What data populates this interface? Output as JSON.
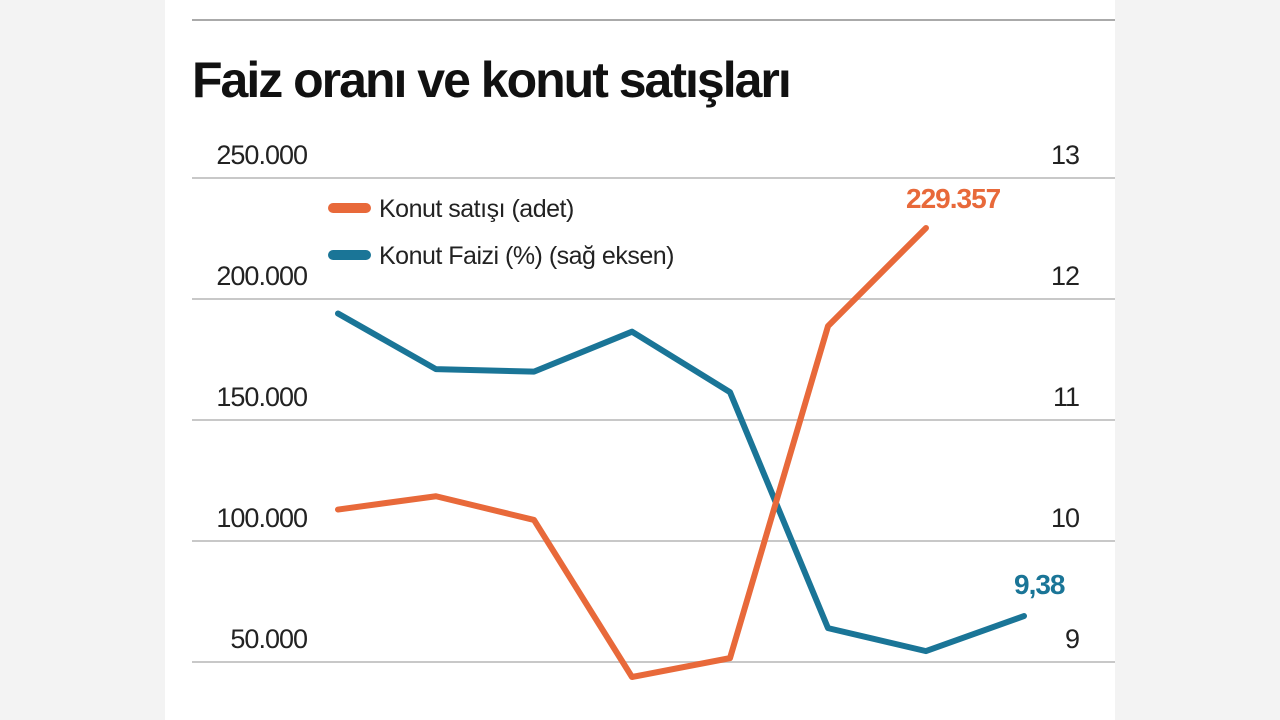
{
  "chart_data": {
    "type": "line",
    "title": "Faiz oranı ve konut satışları",
    "x": [
      1,
      2,
      3,
      4,
      5,
      6,
      7,
      8
    ],
    "y_left": {
      "ticks": [
        "250.000",
        "200.000",
        "150.000",
        "100.000",
        "50.000"
      ],
      "tick_values": [
        250000,
        200000,
        150000,
        100000,
        50000
      ],
      "ylim": [
        50000,
        250000
      ]
    },
    "y_right": {
      "ticks": [
        "13",
        "12",
        "11",
        "10",
        "9"
      ],
      "tick_values": [
        13,
        12,
        11,
        10,
        9
      ],
      "ylim": [
        9,
        13
      ]
    },
    "grid": true,
    "legend_placement": "top-left",
    "series": [
      {
        "name": "Konut satışı (adet)",
        "axis": "left",
        "color": "#e8693a",
        "values": [
          113000,
          118500,
          108700,
          43800,
          51600,
          188800,
          229357,
          null
        ],
        "end_label": "229.357"
      },
      {
        "name": "Konut Faizi (%) (sağ eksen)",
        "axis": "right",
        "color": "#1a7597",
        "values": [
          11.88,
          11.42,
          11.4,
          11.73,
          11.23,
          9.28,
          9.09,
          9.38
        ],
        "end_label": "9,38"
      }
    ]
  }
}
